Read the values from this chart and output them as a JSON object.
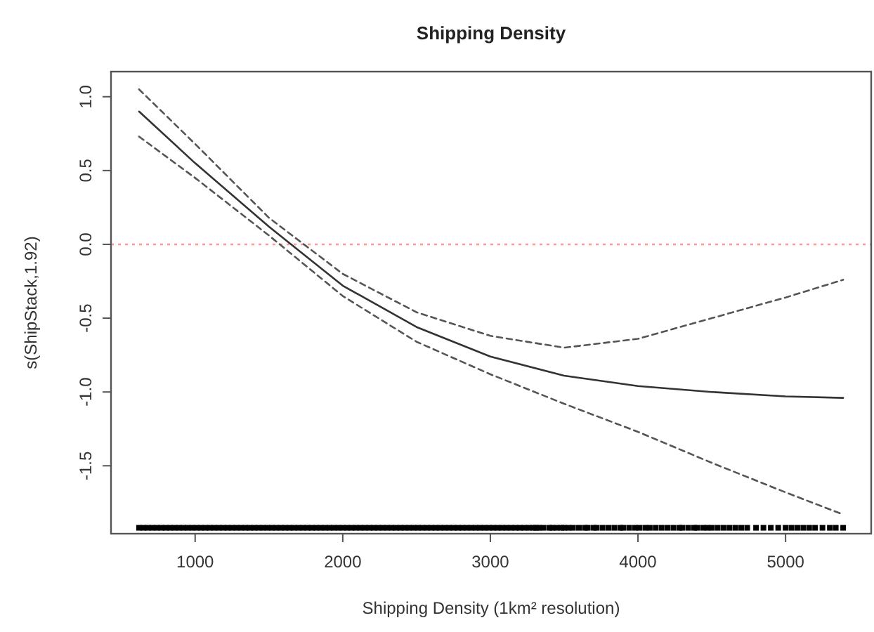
{
  "chart_data": {
    "type": "line",
    "title": "Shipping Density",
    "xlabel": "Shipping Density (1km² resolution)",
    "ylabel": "s(ShipStack,1.92)",
    "xlim": [
      430,
      5580
    ],
    "ylim": [
      -1.96,
      1.17
    ],
    "xticks": [
      1000,
      2000,
      3000,
      4000,
      5000
    ],
    "yticks": [
      {
        "value": -1.5,
        "label": "-1.5"
      },
      {
        "value": -1,
        "label": "-1.0"
      },
      {
        "value": -0.5,
        "label": "-0.5"
      },
      {
        "value": 0,
        "label": "0.0"
      },
      {
        "value": 0.5,
        "label": "0.5"
      },
      {
        "value": 1,
        "label": "1.0"
      }
    ],
    "grid": false,
    "ref_lines": [
      {
        "axis": "y",
        "value": 0,
        "color": "#ff9999",
        "line_style": "dotted"
      }
    ],
    "series": [
      {
        "color": "#333333",
        "line_style": "solid",
        "x": [
          620,
          1000,
          1500,
          1650,
          2000,
          2500,
          3000,
          3500,
          4000,
          4500,
          5000,
          5390
        ],
        "values": [
          0.9,
          0.55,
          0.12,
          0.0,
          -0.28,
          -0.56,
          -0.76,
          -0.89,
          -0.96,
          -1.0,
          -1.03,
          -1.04
        ]
      },
      {
        "color": "#555555",
        "line_style": "dashed",
        "x": [
          620,
          1000,
          1500,
          2000,
          2500,
          3000,
          3500,
          4000,
          4500,
          5000,
          5390
        ],
        "values": [
          1.05,
          0.68,
          0.18,
          -0.2,
          -0.46,
          -0.62,
          -0.7,
          -0.64,
          -0.5,
          -0.36,
          -0.24
        ]
      },
      {
        "color": "#555555",
        "line_style": "dashed",
        "x": [
          620,
          1000,
          1500,
          2000,
          2500,
          3000,
          3500,
          4000,
          4500,
          5000,
          5390
        ],
        "values": [
          0.73,
          0.45,
          0.06,
          -0.35,
          -0.66,
          -0.88,
          -1.08,
          -1.27,
          -1.48,
          -1.68,
          -1.83
        ]
      },
      {
        "type": "scatter",
        "marker": "square",
        "color": "#000000",
        "x": [
          620,
          650,
          680,
          710,
          740,
          770,
          800,
          830,
          860,
          890,
          920,
          950,
          980,
          1010,
          1040,
          1070,
          1100,
          1130,
          1160,
          1190,
          1220,
          1250,
          1280,
          1310,
          1340,
          1370,
          1400,
          1430,
          1460,
          1490,
          1520,
          1550,
          1580,
          1610,
          1640,
          1670,
          1700,
          1730,
          1760,
          1790,
          1820,
          1850,
          1880,
          1910,
          1940,
          1970,
          2000,
          2030,
          2060,
          2090,
          2120,
          2150,
          2180,
          2210,
          2240,
          2270,
          2300,
          2330,
          2360,
          2390,
          2420,
          2450,
          2480,
          2510,
          2540,
          2570,
          2600,
          2630,
          2660,
          2690,
          2720,
          2750,
          2780,
          2810,
          2840,
          2870,
          2900,
          2930,
          2960,
          2990,
          3020,
          3050,
          3080,
          3110,
          3140,
          3170,
          3200,
          3230,
          3260,
          3290,
          3310,
          3330,
          3360,
          3400,
          3420,
          3450,
          3480,
          3500,
          3530,
          3560,
          3600,
          3640,
          3660,
          3700,
          3720,
          3760,
          3800,
          3840,
          3880,
          3900,
          3940,
          3980,
          4010,
          4050,
          4080,
          4120,
          4160,
          4200,
          4240,
          4280,
          4300,
          4340,
          4380,
          4400,
          4440,
          4470,
          4500,
          4540,
          4580,
          4620,
          4660,
          4700,
          4740,
          4800,
          4850,
          4900,
          4950,
          5000,
          5040,
          5080,
          5120,
          5160,
          5200,
          5250,
          5300,
          5340,
          5390
        ],
        "values": [
          -1.92,
          -1.92,
          -1.92,
          -1.92,
          -1.92,
          -1.92,
          -1.92,
          -1.92,
          -1.92,
          -1.92,
          -1.92,
          -1.92,
          -1.92,
          -1.92,
          -1.92,
          -1.92,
          -1.92,
          -1.92,
          -1.92,
          -1.92,
          -1.92,
          -1.92,
          -1.92,
          -1.92,
          -1.92,
          -1.92,
          -1.92,
          -1.92,
          -1.92,
          -1.92,
          -1.92,
          -1.92,
          -1.92,
          -1.92,
          -1.92,
          -1.92,
          -1.92,
          -1.92,
          -1.92,
          -1.92,
          -1.92,
          -1.92,
          -1.92,
          -1.92,
          -1.92,
          -1.92,
          -1.92,
          -1.92,
          -1.92,
          -1.92,
          -1.92,
          -1.92,
          -1.92,
          -1.92,
          -1.92,
          -1.92,
          -1.92,
          -1.92,
          -1.92,
          -1.92,
          -1.92,
          -1.92,
          -1.92,
          -1.92,
          -1.92,
          -1.92,
          -1.92,
          -1.92,
          -1.92,
          -1.92,
          -1.92,
          -1.92,
          -1.92,
          -1.92,
          -1.92,
          -1.92,
          -1.92,
          -1.92,
          -1.92,
          -1.92,
          -1.92,
          -1.92,
          -1.92,
          -1.92,
          -1.92,
          -1.92,
          -1.92,
          -1.92,
          -1.92,
          -1.92,
          -1.92,
          -1.92,
          -1.92,
          -1.92,
          -1.92,
          -1.92,
          -1.92,
          -1.92,
          -1.92,
          -1.92,
          -1.92,
          -1.92,
          -1.92,
          -1.92,
          -1.92,
          -1.92,
          -1.92,
          -1.92,
          -1.92,
          -1.92,
          -1.92,
          -1.92,
          -1.92,
          -1.92,
          -1.92,
          -1.92,
          -1.92,
          -1.92,
          -1.92,
          -1.92,
          -1.92,
          -1.92,
          -1.92,
          -1.92,
          -1.92,
          -1.92,
          -1.92,
          -1.92,
          -1.92,
          -1.92,
          -1.92,
          -1.92,
          -1.92,
          -1.92,
          -1.92,
          -1.92,
          -1.92,
          -1.92,
          -1.92,
          -1.92,
          -1.92,
          -1.92,
          -1.92,
          -1.92,
          -1.92,
          -1.92,
          -1.92
        ]
      }
    ]
  }
}
